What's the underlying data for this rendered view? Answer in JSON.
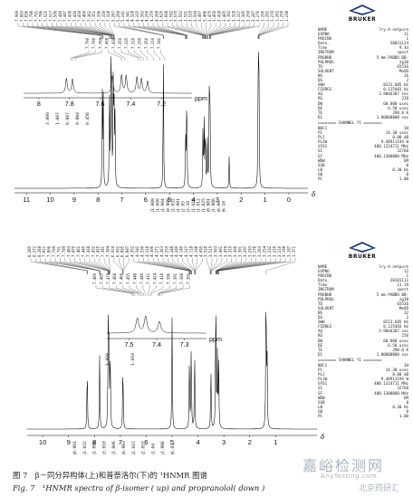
{
  "figure": {
    "caption_cn": "图 7　β－同分异构体(上)和普萘洛尔(下)的 ¹HNMR 图谱",
    "caption_en": "Fig. 7　¹HNMR spectra of β-isomer ( up) and propranolol( down )",
    "watermark": {
      "main": "嘉峪检测网",
      "url": "AnyTesting.com",
      "side": "北京药研汇"
    }
  },
  "chart_data": [
    {
      "type": "line",
      "panel": "top",
      "x_unit": "ppm",
      "main_axis": {
        "ticks": [
          11,
          10,
          9,
          8,
          7,
          6,
          5,
          4,
          3,
          2,
          1,
          0,
          "δ"
        ],
        "xlim": [
          11.5,
          -0.8
        ]
      },
      "inset": {
        "ticks": [
          "8",
          "7.8",
          "7.6",
          "7.4",
          "7.2",
          "ppm"
        ],
        "xlim": [
          8.1,
          7.0
        ],
        "peak_labels": [
          "7.790",
          "7.780",
          "7.760",
          "7.458",
          "7.438",
          "7.350",
          "7.335",
          "7.318",
          "7.290",
          "7.250",
          "7.210",
          "7.182"
        ],
        "integrals": [
          "3.000",
          "1.007",
          "0.987",
          "0.994",
          "0.456"
        ]
      },
      "peak_labels_top": [
        "7.900",
        "7.883",
        "7.836",
        "7.798",
        "7.791",
        "7.786",
        "7.525",
        "7.517",
        "7.506",
        "7.449",
        "7.447",
        "7.438",
        "7.430",
        "7.418",
        "7.400",
        "7.362",
        "7.351",
        "7.336",
        "7.330",
        "7.318",
        "5.267",
        "5.256",
        "5.241",
        "4.341",
        "4.328",
        "4.315",
        "4.302",
        "4.290",
        "4.279",
        "4.268",
        "3.625",
        "3.608",
        "3.592",
        "3.575",
        "3.552",
        "3.531",
        "3.520",
        "3.509",
        "3.497",
        "3.486",
        "3.475",
        "3.450",
        "3.418",
        "3.405",
        "3.392",
        "3.328",
        "3.317",
        "3.305",
        "3.299",
        "3.287",
        "3.276",
        "1.290",
        "1.282",
        "1.270",
        "1.262",
        "1.250",
        "1.238"
      ],
      "integrals": [
        "1.008",
        "1.000",
        "1.004",
        "0.989",
        "1.032",
        "1.001",
        "2.05",
        "2.10",
        "1.018",
        "1.012",
        "1.025",
        "0.981",
        "1.980",
        "6.00",
        "6.10"
      ],
      "peaks": [
        {
          "ppm": 7.82,
          "height": 0.62
        },
        {
          "ppm": 7.78,
          "height": 0.58
        },
        {
          "ppm": 7.52,
          "height": 0.7
        },
        {
          "ppm": 7.46,
          "height": 0.75
        },
        {
          "ppm": 7.43,
          "height": 0.72
        },
        {
          "ppm": 7.36,
          "height": 0.66
        },
        {
          "ppm": 7.33,
          "height": 0.6
        },
        {
          "ppm": 7.29,
          "height": 0.5
        },
        {
          "ppm": 5.26,
          "height": 0.95
        },
        {
          "ppm": 4.33,
          "height": 0.35
        },
        {
          "ppm": 4.29,
          "height": 0.4
        },
        {
          "ppm": 4.27,
          "height": 0.32
        },
        {
          "ppm": 3.6,
          "height": 0.4
        },
        {
          "ppm": 3.55,
          "height": 0.45
        },
        {
          "ppm": 3.5,
          "height": 0.42
        },
        {
          "ppm": 3.42,
          "height": 0.38
        },
        {
          "ppm": 3.33,
          "height": 0.9
        },
        {
          "ppm": 3.3,
          "height": 0.4
        },
        {
          "ppm": 2.5,
          "height": 0.22
        },
        {
          "ppm": 1.29,
          "height": 0.5
        },
        {
          "ppm": 1.27,
          "height": 0.62
        },
        {
          "ppm": 1.25,
          "height": 0.55
        }
      ],
      "params": [
        [
          "NAME",
          "lry-4-netpure"
        ],
        [
          "EXPNO",
          "11"
        ],
        [
          "PROCNO",
          "1"
        ],
        [
          "Date_",
          "20031124"
        ],
        [
          "Time",
          "9.44"
        ],
        [
          "INSTRUM",
          "spect"
        ],
        [
          "PROBHD",
          "5 mm PABBO BB-"
        ],
        [
          "PULPROG",
          "zg30"
        ],
        [
          "TD",
          "65536"
        ],
        [
          "SOLVENT",
          "MeOD"
        ],
        [
          "NS",
          "16"
        ],
        [
          "DS",
          "2"
        ],
        [
          "SWH",
          "8223.685 Hz"
        ],
        [
          "FIDRES",
          "0.125483 Hz"
        ],
        [
          "AQ",
          "3.9846387 sec"
        ],
        [
          "RG",
          "228"
        ],
        [
          "DW",
          "60.800 usec"
        ],
        [
          "DE",
          "6.50 usec"
        ],
        [
          "TE",
          "298.0 K"
        ],
        [
          "D1",
          "1.00000000 sec"
        ],
        [
          "CHANNEL",
          "======== CHANNEL f1 ========"
        ],
        [
          "NUC1",
          "1H"
        ],
        [
          "P1",
          "14.30 usec"
        ],
        [
          "PL1",
          "0.00 dB"
        ],
        [
          "PL1W",
          "9.48911194 W"
        ],
        [
          "SFO1",
          "400.1324711 MHz"
        ],
        [
          "SI",
          "32768"
        ],
        [
          "SF",
          "400.1300000 MHz"
        ],
        [
          "WDW",
          "EM"
        ],
        [
          "SSB",
          "0"
        ],
        [
          "LB",
          "0.30 Hz"
        ],
        [
          "GB",
          "0"
        ],
        [
          "PC",
          "1.00"
        ]
      ]
    },
    {
      "type": "line",
      "panel": "bottom",
      "x_unit": "ppm",
      "main_axis": {
        "ticks": [
          10,
          9,
          8,
          7,
          6,
          5,
          4,
          3,
          2,
          1,
          "δ"
        ],
        "xlim": [
          10.6,
          -0.6
        ]
      },
      "inset": {
        "ticks": [
          "7.5",
          "7.4",
          "7.3",
          "ppm"
        ],
        "xlim": [
          7.58,
          7.22
        ],
        "peak_labels": [
          "7.489",
          "7.485",
          "7.479",
          "7.468",
          "7.460",
          "7.455",
          "7.448",
          "7.440",
          "7.431",
          "7.424",
          "7.418",
          "7.396",
          "7.391",
          "7.388",
          "7.381"
        ],
        "integrals": [
          "1.000",
          "1.010"
        ]
      },
      "peak_labels_top": [
        "8.285",
        "8.272",
        "8.268",
        "7.811",
        "7.806",
        "7.799",
        "7.791",
        "7.789",
        "7.483",
        "7.470",
        "7.461",
        "7.445",
        "7.438",
        "7.432",
        "7.425",
        "7.391",
        "7.384",
        "6.910",
        "6.902",
        "6.895",
        "6.887",
        "4.352",
        "4.341",
        "4.330",
        "4.318",
        "4.306",
        "4.271",
        "4.263",
        "4.255",
        "4.248",
        "4.240",
        "4.140",
        "4.127",
        "4.118",
        "4.108",
        "4.095",
        "3.528",
        "3.515",
        "3.503",
        "3.491",
        "3.478",
        "3.310",
        "3.306",
        "3.301",
        "3.297",
        "3.293",
        "3.276",
        "3.263",
        "3.254",
        "3.232",
        "3.220",
        "3.210",
        "3.198",
        "3.187",
        "1.371"
      ],
      "integrals": [
        "0.991",
        "1.022",
        "1.000",
        "3.010",
        "1.006",
        "0.993",
        "1.015",
        "2.057",
        "1.04",
        "1.996",
        "6.03"
      ],
      "peaks": [
        {
          "ppm": 8.28,
          "height": 0.42
        },
        {
          "ppm": 7.8,
          "height": 0.46
        },
        {
          "ppm": 7.47,
          "height": 0.62
        },
        {
          "ppm": 7.44,
          "height": 0.7
        },
        {
          "ppm": 7.39,
          "height": 0.5
        },
        {
          "ppm": 6.9,
          "height": 0.45
        },
        {
          "ppm": 5.0,
          "height": 0.7
        },
        {
          "ppm": 4.33,
          "height": 0.45
        },
        {
          "ppm": 4.26,
          "height": 0.55
        },
        {
          "ppm": 4.13,
          "height": 0.5
        },
        {
          "ppm": 3.5,
          "height": 0.4
        },
        {
          "ppm": 3.31,
          "height": 0.95
        },
        {
          "ppm": 3.25,
          "height": 0.45
        },
        {
          "ppm": 3.2,
          "height": 0.42
        },
        {
          "ppm": 1.37,
          "height": 0.98
        },
        {
          "ppm": 1.33,
          "height": 0.5
        }
      ],
      "params": [
        [
          "NAME",
          "lry-4-netpure"
        ],
        [
          "EXPNO",
          "12"
        ],
        [
          "PROCNO",
          "1"
        ],
        [
          "Date_",
          "20101111"
        ],
        [
          "Time",
          "11.19"
        ],
        [
          "INSTRUM",
          "spect"
        ],
        [
          "PROBHD",
          "5 mm PABBO BB-"
        ],
        [
          "PULPROG",
          "zg30"
        ],
        [
          "TD",
          "65536"
        ],
        [
          "SOLVENT",
          "MeOD"
        ],
        [
          "NS",
          "32"
        ],
        [
          "DS",
          "2"
        ],
        [
          "SWH",
          "8223.685 Hz"
        ],
        [
          "FIDRES",
          "0.125483 Hz"
        ],
        [
          "AQ",
          "3.9846387 sec"
        ],
        [
          "RG",
          "256"
        ],
        [
          "DW",
          "60.800 usec"
        ],
        [
          "DE",
          "6.50 usec"
        ],
        [
          "TE",
          "298.0 K"
        ],
        [
          "D1",
          "1.00000000 sec"
        ],
        [
          "CHANNEL",
          "======== CHANNEL f1 ========"
        ],
        [
          "NUC1",
          "1H"
        ],
        [
          "P1",
          "14.30 usec"
        ],
        [
          "PL1",
          "0.00 dB"
        ],
        [
          "PL1W",
          "9.48911194 W"
        ],
        [
          "SFO1",
          "400.1324711 MHz"
        ],
        [
          "SI",
          "32768"
        ],
        [
          "SF",
          "400.1300000 MHz"
        ],
        [
          "WDW",
          "EM"
        ],
        [
          "SSB",
          "0"
        ],
        [
          "LB",
          "0.30 Hz"
        ],
        [
          "GB",
          "0"
        ],
        [
          "PC",
          "1.00"
        ]
      ]
    }
  ],
  "logo": {
    "text": "BRUKER"
  }
}
